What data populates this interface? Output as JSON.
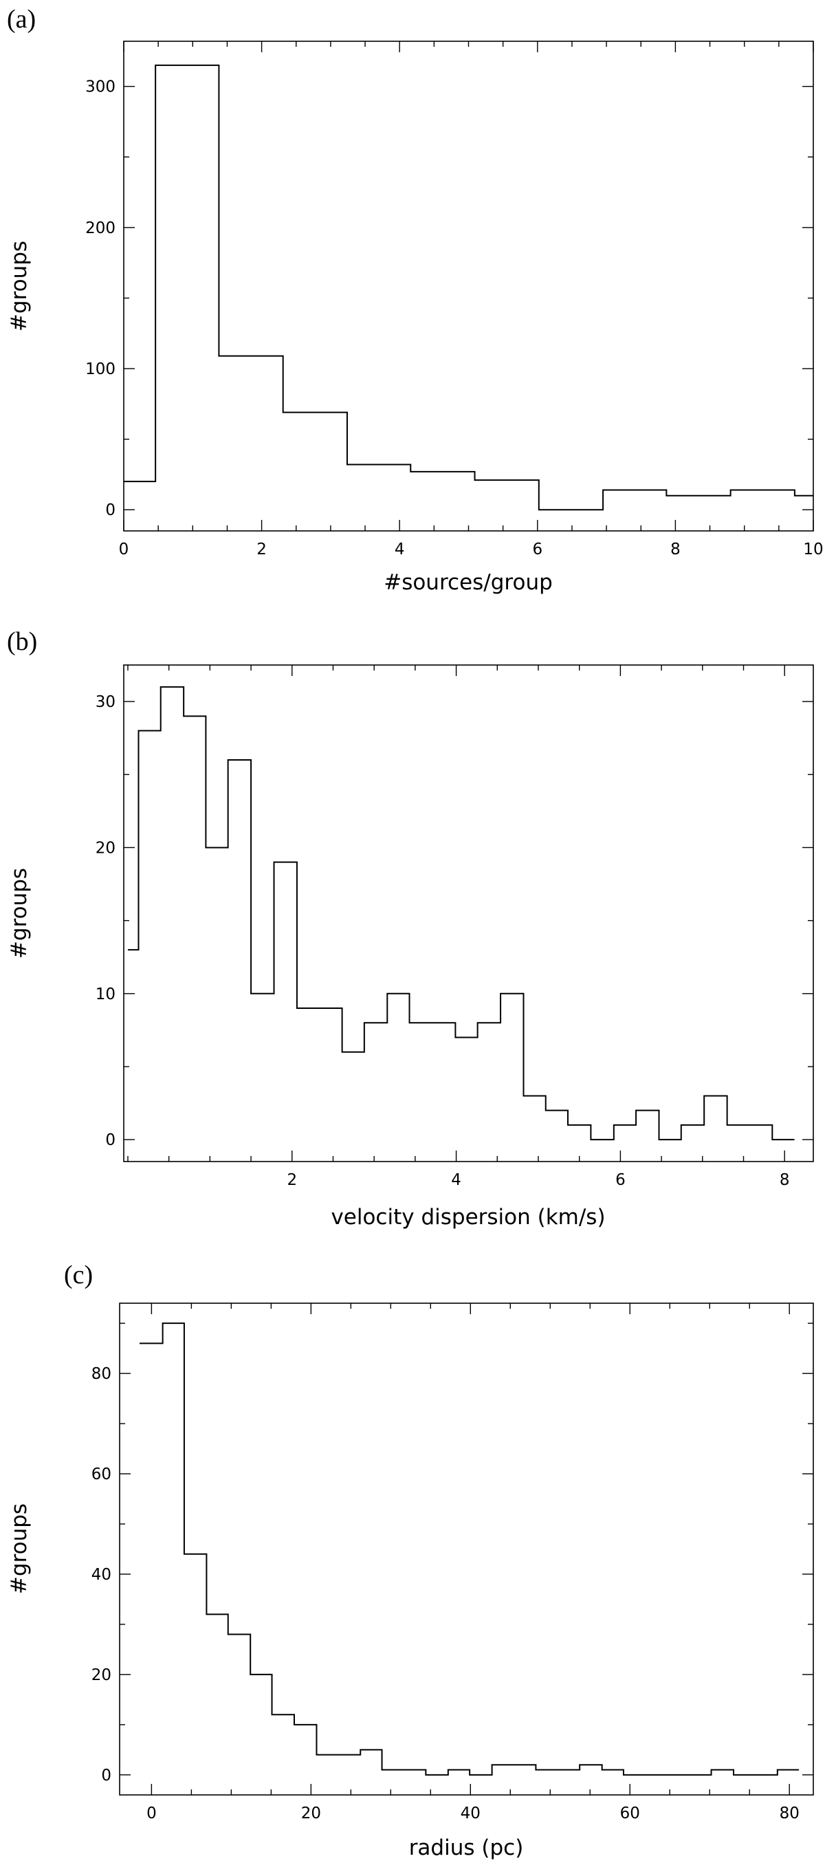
{
  "figure": {
    "panels": [
      {
        "panel_label": "(a)"
      },
      {
        "panel_label": "(b)"
      },
      {
        "panel_label": "(c)"
      }
    ]
  },
  "chart_data": [
    {
      "type": "bar",
      "style": "step-histogram",
      "panel_label": "(a)",
      "xlabel": "#sources/group",
      "ylabel": "#groups",
      "xlim": [
        0,
        10
      ],
      "ylim": [
        -15,
        332
      ],
      "xticks": [
        0,
        2,
        4,
        6,
        8,
        10
      ],
      "yticks": [
        0,
        100,
        200,
        300
      ],
      "bin_edges": [
        0,
        0.46,
        1.38,
        2.31,
        3.24,
        4.16,
        5.09,
        6.02,
        6.95,
        7.87,
        8.8,
        9.73,
        10
      ],
      "values": [
        20,
        315,
        109,
        69,
        32,
        27,
        21,
        0,
        14,
        10,
        14,
        10
      ],
      "grid": false
    },
    {
      "type": "bar",
      "style": "step-histogram",
      "panel_label": "(b)",
      "xlabel": "velocity dispersion (km/s)",
      "ylabel": "#groups",
      "xlim": [
        -0.05,
        8.35
      ],
      "ylim": [
        -1.5,
        32.5
      ],
      "xticks": [
        2,
        4,
        6,
        8
      ],
      "yticks": [
        0,
        10,
        20,
        30
      ],
      "bin_edges": [
        0.0,
        0.13,
        0.4,
        0.68,
        0.95,
        1.22,
        1.5,
        1.78,
        2.06,
        2.33,
        2.61,
        2.88,
        3.16,
        3.43,
        3.71,
        3.99,
        4.26,
        4.54,
        4.82,
        5.09,
        5.36,
        5.64,
        5.92,
        6.19,
        6.47,
        6.74,
        7.02,
        7.3,
        7.57,
        7.85,
        8.12
      ],
      "values": [
        13,
        28,
        31,
        29,
        20,
        26,
        10,
        19,
        9,
        9,
        6,
        8,
        10,
        8,
        8,
        7,
        8,
        10,
        3,
        2,
        1,
        0,
        1,
        2,
        0,
        1,
        3,
        1,
        1,
        0
      ],
      "grid": false
    },
    {
      "type": "bar",
      "style": "step-histogram",
      "panel_label": "(c)",
      "xlabel": "radius (pc)",
      "ylabel": "#groups",
      "xlim": [
        -4,
        83
      ],
      "ylim": [
        -4,
        94
      ],
      "xticks": [
        0,
        20,
        40,
        60,
        80
      ],
      "yticks": [
        0,
        20,
        40,
        60,
        80
      ],
      "bin_edges": [
        -1.5,
        1.4,
        4.1,
        6.9,
        9.6,
        12.4,
        15.1,
        17.9,
        20.7,
        23.4,
        26.2,
        28.9,
        31.7,
        34.4,
        37.2,
        39.9,
        42.7,
        45.4,
        48.2,
        50.9,
        53.7,
        56.5,
        59.2,
        62.0,
        64.7,
        67.5,
        70.2,
        73.0,
        75.7,
        78.5,
        81.2
      ],
      "values": [
        86,
        90,
        44,
        32,
        28,
        20,
        12,
        10,
        4,
        4,
        5,
        1,
        1,
        0,
        1,
        0,
        2,
        2,
        1,
        1,
        2,
        1,
        0,
        0,
        0,
        0,
        1,
        0,
        0,
        1
      ],
      "grid": false
    }
  ]
}
